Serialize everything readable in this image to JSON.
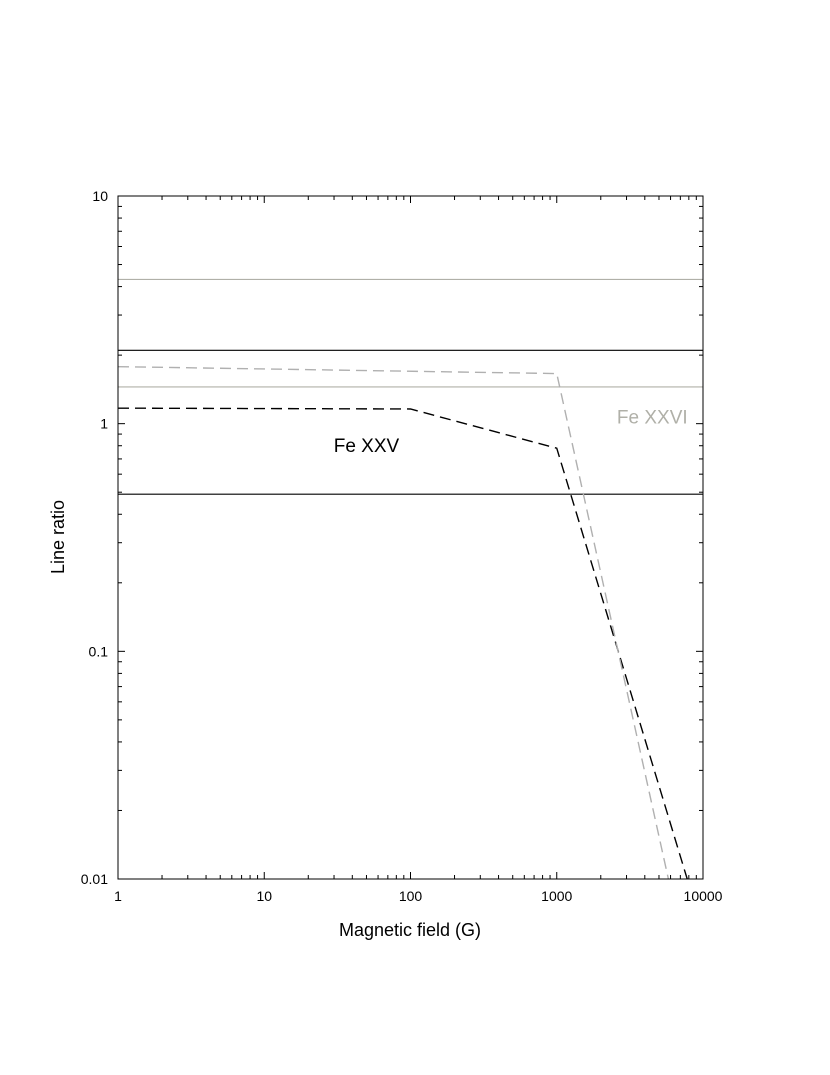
{
  "chart_data": {
    "type": "line",
    "title": "",
    "xlabel": "Magnetic field (G)",
    "ylabel": "Line ratio",
    "x_scale": "log",
    "y_scale": "log",
    "xlim": [
      1,
      10000
    ],
    "ylim": [
      0.01,
      10
    ],
    "x_ticks": [
      {
        "value": 1,
        "label": "1"
      },
      {
        "value": 10,
        "label": "10"
      },
      {
        "value": 100,
        "label": "100"
      },
      {
        "value": 1000,
        "label": "1000"
      },
      {
        "value": 10000,
        "label": "10000"
      }
    ],
    "y_ticks": [
      {
        "value": 0.01,
        "label": "0.01"
      },
      {
        "value": 0.1,
        "label": "0.1"
      },
      {
        "value": 1,
        "label": "1"
      },
      {
        "value": 10,
        "label": "10"
      }
    ],
    "grid": false,
    "legend": "none",
    "series": [
      {
        "label": "Fe XXV",
        "color": "#000000",
        "style": "dashed",
        "x": [
          1,
          100,
          1000,
          7800
        ],
        "y": [
          1.17,
          1.16,
          0.78,
          0.01
        ]
      },
      {
        "label": "Fe XXVI",
        "color": "#b0b0b0",
        "style": "dashed",
        "x": [
          1,
          1000,
          5800
        ],
        "y": [
          1.78,
          1.66,
          0.01
        ]
      }
    ],
    "reference_lines": [
      {
        "axis": "y",
        "value": 2.1,
        "color": "#000000"
      },
      {
        "axis": "y",
        "value": 0.49,
        "color": "#000000"
      },
      {
        "axis": "y",
        "value": 4.3,
        "color": "#b0b0a8"
      },
      {
        "axis": "y",
        "value": 1.45,
        "color": "#b0b0a8"
      }
    ],
    "annotations": [
      {
        "text": "Fe XXV",
        "x": 50,
        "y": 0.75,
        "color": "#000000"
      },
      {
        "text": "Fe XXVI",
        "x": 4500,
        "y": 1.0,
        "color": "#b0b0a8"
      }
    ]
  }
}
